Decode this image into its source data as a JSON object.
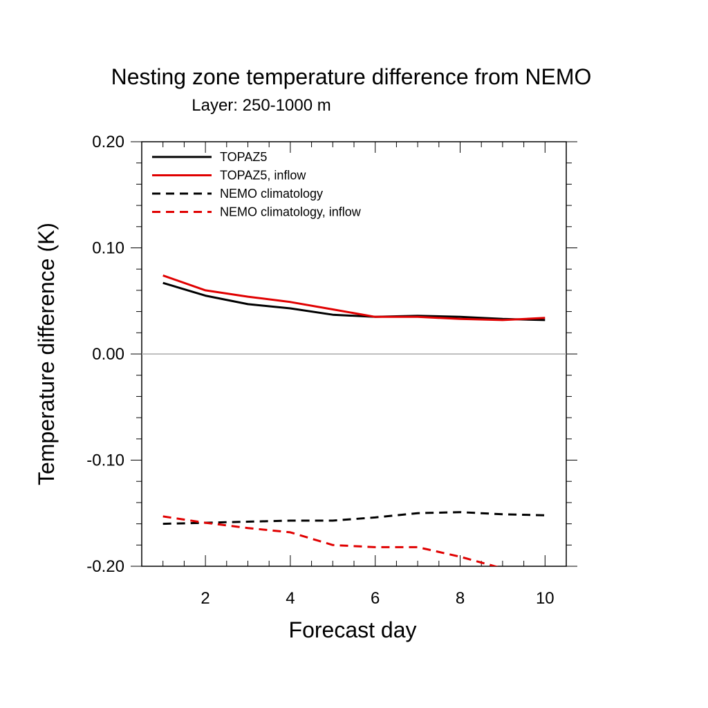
{
  "chart_data": {
    "type": "line",
    "title": "Nesting zone temperature difference from NEMO",
    "subtitle": "Layer: 250-1000 m",
    "xlabel": "Forecast day",
    "ylabel": "Temperature difference (K)",
    "xlim": [
      0.5,
      10.5
    ],
    "ylim": [
      -0.2,
      0.2
    ],
    "xticks": [
      2,
      4,
      6,
      8,
      10
    ],
    "xtick_labels": [
      "2",
      "4",
      "6",
      "8",
      "10"
    ],
    "yticks": [
      -0.2,
      -0.1,
      0.0,
      0.1,
      0.2
    ],
    "ytick_labels": [
      "-0.20",
      "-0.10",
      "0.00",
      "0.10",
      "0.20"
    ],
    "zero_line": true,
    "grid": false,
    "legend_position": "top-left",
    "x": [
      1,
      2,
      3,
      4,
      5,
      6,
      7,
      8,
      9,
      10
    ],
    "series": [
      {
        "name": "TOPAZ5",
        "color": "#000000",
        "dash": "solid",
        "values": [
          0.067,
          0.055,
          0.047,
          0.043,
          0.037,
          0.035,
          0.036,
          0.035,
          0.033,
          0.032
        ]
      },
      {
        "name": "TOPAZ5, inflow",
        "color": "#e00000",
        "dash": "solid",
        "values": [
          0.074,
          0.06,
          0.054,
          0.049,
          0.042,
          0.035,
          0.035,
          0.033,
          0.032,
          0.034
        ]
      },
      {
        "name": "NEMO climatology",
        "color": "#000000",
        "dash": "dashed",
        "values": [
          -0.16,
          -0.159,
          -0.158,
          -0.157,
          -0.157,
          -0.154,
          -0.15,
          -0.149,
          -0.151,
          -0.152
        ]
      },
      {
        "name": "NEMO climatology, inflow",
        "color": "#e00000",
        "dash": "dashed",
        "values": [
          -0.153,
          -0.159,
          -0.164,
          -0.168,
          -0.18,
          -0.182,
          -0.182,
          -0.191,
          -0.202,
          -0.21
        ]
      }
    ]
  }
}
